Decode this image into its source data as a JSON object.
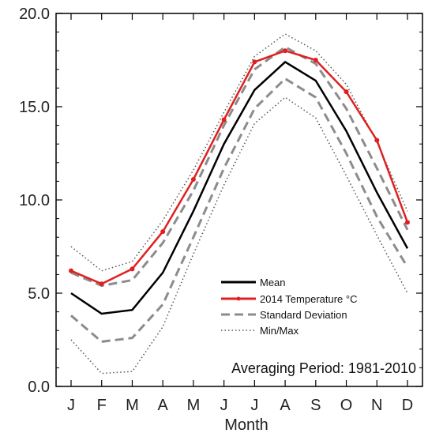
{
  "chart_data": {
    "type": "line",
    "categories": [
      "J",
      "F",
      "M",
      "A",
      "M",
      "J",
      "J",
      "A",
      "S",
      "O",
      "N",
      "D"
    ],
    "xlabel": "Month",
    "ylabel": "",
    "ylim": [
      0,
      20
    ],
    "yticks": [
      "0.0",
      "5.0",
      "10.0",
      "15.0",
      "20.0"
    ],
    "annotation": "Averaging Period: 1981-2010",
    "legend_position": "lower-right",
    "grid": false,
    "series": [
      {
        "name": "Mean",
        "style": "solid",
        "color": "#000000",
        "markers": false,
        "values": [
          5.0,
          3.9,
          4.1,
          6.1,
          9.4,
          13.0,
          15.9,
          17.4,
          16.4,
          13.7,
          10.4,
          7.4
        ]
      },
      {
        "name": "2014 Temperature °C",
        "style": "solid",
        "color": "#e02020",
        "markers": true,
        "values": [
          6.2,
          5.5,
          6.3,
          8.3,
          11.1,
          14.3,
          17.4,
          18.0,
          17.5,
          15.8,
          13.2,
          8.8
        ]
      },
      {
        "name": "Standard Deviation",
        "style": "dashed",
        "color": "#8c8c8c",
        "markers": false,
        "values_upper": [
          6.1,
          5.4,
          5.7,
          7.7,
          10.5,
          14.0,
          17.0,
          18.2,
          17.3,
          14.9,
          11.7,
          8.4
        ],
        "values_lower": [
          3.8,
          2.4,
          2.6,
          4.4,
          8.0,
          11.7,
          14.9,
          16.5,
          15.5,
          12.5,
          9.1,
          6.4
        ]
      },
      {
        "name": "Min/Max",
        "style": "dotted",
        "color": "#555555",
        "markers": false,
        "values_upper": [
          7.5,
          6.2,
          6.7,
          8.9,
          11.6,
          14.7,
          17.7,
          18.9,
          18.0,
          16.2,
          13.1,
          9.4
        ],
        "values_lower": [
          2.5,
          0.7,
          0.8,
          3.2,
          7.1,
          10.8,
          14.1,
          15.5,
          14.4,
          11.3,
          8.1,
          5.0
        ]
      }
    ]
  }
}
